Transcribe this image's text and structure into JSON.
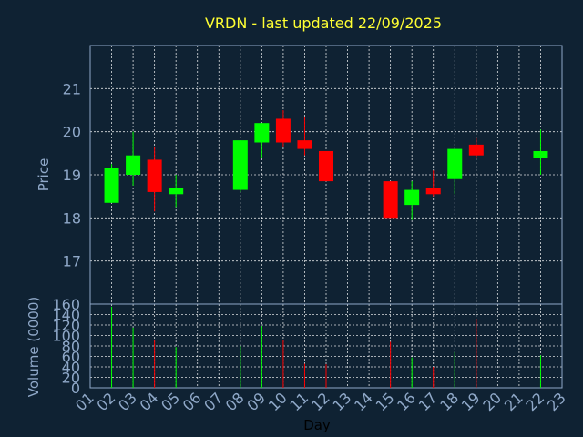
{
  "chart_data": {
    "type": "candlestick",
    "title": "VRDN - last updated 22/09/2025",
    "xlabel": "Day",
    "price_ylabel": "Price",
    "volume_ylabel": "Volume (0000)",
    "days": [
      "01",
      "02",
      "03",
      "04",
      "05",
      "06",
      "07",
      "08",
      "09",
      "10",
      "11",
      "12",
      "13",
      "14",
      "15",
      "16",
      "17",
      "18",
      "19",
      "20",
      "21",
      "22",
      "23"
    ],
    "price_ticks": [
      17,
      18,
      19,
      20,
      21
    ],
    "price_ylim": [
      16,
      22
    ],
    "volume_ticks": [
      0,
      20,
      40,
      60,
      80,
      100,
      120,
      140,
      160
    ],
    "volume_ylim": [
      0,
      160
    ],
    "colors": {
      "up": "#00ff00",
      "down": "#ff0000",
      "background": "#0f2233",
      "axis": "#8fa8c8",
      "title": "#ffff33"
    },
    "candles": [
      {
        "day": "02",
        "open": 18.35,
        "close": 19.15,
        "high": 19.25,
        "low": 18.35,
        "volume": 155
      },
      {
        "day": "03",
        "open": 19.0,
        "close": 19.45,
        "high": 20.0,
        "low": 18.75,
        "volume": 115
      },
      {
        "day": "04",
        "open": 19.35,
        "close": 18.6,
        "high": 19.65,
        "low": 18.15,
        "volume": 92
      },
      {
        "day": "05",
        "open": 18.55,
        "close": 18.7,
        "high": 19.0,
        "low": 18.25,
        "volume": 78
      },
      {
        "day": "08",
        "open": 18.65,
        "close": 19.8,
        "high": 19.8,
        "low": 18.6,
        "volume": 80
      },
      {
        "day": "09",
        "open": 19.75,
        "close": 20.2,
        "high": 20.2,
        "low": 19.4,
        "volume": 118
      },
      {
        "day": "10",
        "open": 20.3,
        "close": 19.75,
        "high": 20.5,
        "low": 19.65,
        "volume": 92
      },
      {
        "day": "11",
        "open": 19.8,
        "close": 19.6,
        "high": 20.35,
        "low": 19.45,
        "volume": 46
      },
      {
        "day": "12",
        "open": 19.55,
        "close": 18.85,
        "high": 19.55,
        "low": 18.85,
        "volume": 45
      },
      {
        "day": "15",
        "open": 18.85,
        "close": 18.0,
        "high": 18.85,
        "low": 18.0,
        "volume": 88
      },
      {
        "day": "16",
        "open": 18.3,
        "close": 18.65,
        "high": 18.85,
        "low": 17.95,
        "volume": 58
      },
      {
        "day": "17",
        "open": 18.7,
        "close": 18.55,
        "high": 19.1,
        "low": 18.5,
        "volume": 40
      },
      {
        "day": "18",
        "open": 18.9,
        "close": 19.6,
        "high": 19.6,
        "low": 18.55,
        "volume": 68
      },
      {
        "day": "19",
        "open": 19.7,
        "close": 19.45,
        "high": 19.85,
        "low": 19.4,
        "volume": 132
      },
      {
        "day": "22",
        "open": 19.4,
        "close": 19.55,
        "high": 20.05,
        "low": 19.0,
        "volume": 62
      }
    ]
  }
}
